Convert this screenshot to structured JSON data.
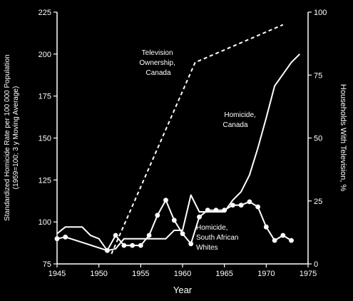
{
  "chart_data": {
    "type": "line",
    "title": "",
    "xlabel": "Year",
    "ylabel_left": "Standardized Homicide Rate per 100 000 Population (1959=100; 3 y Moving Average)",
    "ylabel_left_line1": "Standardized Homicide Rate per 100 000 Population",
    "ylabel_left_line2": "(1959=100; 3 y Moving Average)",
    "ylabel_right": "Households With Television, %",
    "xlim": [
      1945,
      1975
    ],
    "ylim_left": [
      75,
      225
    ],
    "ylim_right": [
      0,
      100
    ],
    "x_ticks": [
      "1945",
      "1950",
      "1955",
      "1960",
      "1965",
      "1970",
      "1975"
    ],
    "y_left_ticks": [
      "75",
      "100",
      "125",
      "150",
      "175",
      "200",
      "225"
    ],
    "y_right_ticks": [
      "0",
      "25",
      "50",
      "75",
      "100"
    ],
    "grid": false,
    "legend": "inline annotations",
    "series": [
      {
        "name": "Television Ownership, Canada",
        "label_lines": [
          "Television",
          "Ownership,",
          "Canada"
        ],
        "axis": "right",
        "style": "dashed",
        "color": "#ffffff",
        "x": [
          1951.5,
          1961.5,
          1972
        ],
        "y": [
          4,
          80,
          95
        ]
      },
      {
        "name": "Homicide, Canada",
        "label_lines": [
          "Homicide,",
          "Canada"
        ],
        "axis": "left",
        "style": "solid",
        "color": "#ffffff",
        "x": [
          1945,
          1946,
          1948,
          1949,
          1950,
          1951,
          1952,
          1953,
          1954,
          1955,
          1956,
          1957,
          1958,
          1959,
          1960,
          1961,
          1962,
          1963,
          1964,
          1965,
          1966,
          1967,
          1968,
          1969,
          1970,
          1971,
          1972,
          1973,
          1974
        ],
        "y": [
          93,
          97,
          97,
          92,
          90,
          83,
          84,
          90,
          90,
          90,
          90,
          90,
          90,
          95,
          95,
          116,
          106,
          106,
          106,
          106,
          113,
          118,
          128,
          144,
          162,
          181,
          188,
          195,
          200
        ]
      },
      {
        "name": "Homicide, South African Whites",
        "label_lines": [
          "Homicide,",
          "South African",
          "Whites"
        ],
        "axis": "left",
        "style": "solid-markers",
        "color": "#ffffff",
        "x": [
          1945,
          1946,
          1951,
          1952,
          1953,
          1954,
          1955,
          1956,
          1957,
          1958,
          1959,
          1960,
          1961,
          1962,
          1963,
          1964,
          1965,
          1966,
          1967,
          1968,
          1969,
          1970,
          1971,
          1972,
          1973
        ],
        "y": [
          90,
          91,
          83,
          92,
          86,
          86,
          86,
          92,
          104,
          113,
          101,
          93,
          87,
          103,
          107,
          107,
          107,
          110,
          110,
          112,
          109,
          97,
          89,
          92,
          89
        ]
      }
    ]
  }
}
